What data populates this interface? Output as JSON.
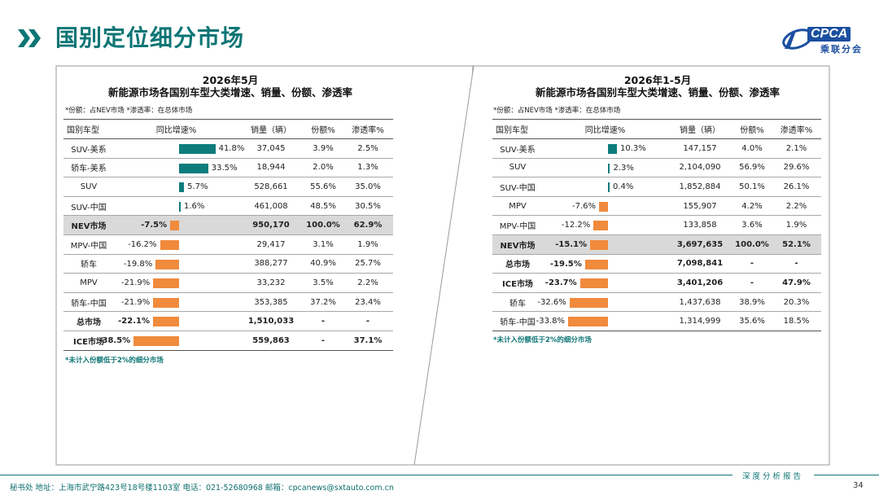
{
  "header": {
    "title": "国别定位细分市场"
  },
  "logo": {
    "brand": "CPCA",
    "subtitle": "乘联分会"
  },
  "left": {
    "title_line1": "2026年5月",
    "title_line2": "新能源市场各国别车型大类增速、销量、份额、渗透率",
    "note": "*份额：占NEV市场   *渗透率：在总体市场",
    "footnote": "*未计入份额低于2%的细分市场",
    "headers": [
      "国别车型",
      "同比增速%",
      "销量（辆）",
      "份额%",
      "渗透率%"
    ]
  },
  "right": {
    "title_line1": "2026年1-5月",
    "title_line2": "新能源市场各国别车型大类增速、销量、份额、渗透率",
    "note": "*份额：占NEV市场   *渗透率：在总体市场",
    "footnote": "*未计入份额低于2%的细分市场",
    "headers": [
      "国别车型",
      "同比增速%",
      "销量（辆）",
      "份额%",
      "渗透率%"
    ]
  },
  "chart_data": [
    {
      "type": "table",
      "title": "2026年5月 新能源市场各国别车型大类增速、销量、份额、渗透率",
      "columns": [
        "国别车型",
        "同比增速%",
        "销量（辆）",
        "份额%",
        "渗透率%"
      ],
      "growth_range": [
        -38.5,
        41.8
      ],
      "rows": [
        {
          "name": "SUV-美系",
          "growth": 41.8,
          "growth_label": "41.8%",
          "sales": "37,045",
          "share": "3.9%",
          "penetration": "2.5%",
          "style": ""
        },
        {
          "name": "轿车-美系",
          "growth": 33.5,
          "growth_label": "33.5%",
          "sales": "18,944",
          "share": "2.0%",
          "penetration": "1.3%",
          "style": ""
        },
        {
          "name": "SUV",
          "growth": 5.7,
          "growth_label": "5.7%",
          "sales": "528,661",
          "share": "55.6%",
          "penetration": "35.0%",
          "style": ""
        },
        {
          "name": "SUV-中国",
          "growth": 1.6,
          "growth_label": "1.6%",
          "sales": "461,008",
          "share": "48.5%",
          "penetration": "30.5%",
          "style": ""
        },
        {
          "name": "NEV市场",
          "growth": -7.5,
          "growth_label": "-7.5%",
          "sales": "950,170",
          "share": "100.0%",
          "penetration": "62.9%",
          "style": "hl"
        },
        {
          "name": "MPV-中国",
          "growth": -16.2,
          "growth_label": "-16.2%",
          "sales": "29,417",
          "share": "3.1%",
          "penetration": "1.9%",
          "style": ""
        },
        {
          "name": "轿车",
          "growth": -19.8,
          "growth_label": "-19.8%",
          "sales": "388,277",
          "share": "40.9%",
          "penetration": "25.7%",
          "style": ""
        },
        {
          "name": "MPV",
          "growth": -21.9,
          "growth_label": "-21.9%",
          "sales": "33,232",
          "share": "3.5%",
          "penetration": "2.2%",
          "style": ""
        },
        {
          "name": "轿车-中国",
          "growth": -21.9,
          "growth_label": "-21.9%",
          "sales": "353,385",
          "share": "37.2%",
          "penetration": "23.4%",
          "style": ""
        },
        {
          "name": "总市场",
          "growth": -22.1,
          "growth_label": "-22.1%",
          "sales": "1,510,033",
          "share": "-",
          "penetration": "-",
          "style": "bold"
        },
        {
          "name": "ICE市场",
          "growth": -38.5,
          "growth_label": "-38.5%",
          "sales": "559,863",
          "share": "-",
          "penetration": "37.1%",
          "style": "bold"
        }
      ]
    },
    {
      "type": "table",
      "title": "2026年1-5月 新能源市场各国别车型大类增速、销量、份额、渗透率",
      "columns": [
        "国别车型",
        "同比增速%",
        "销量（辆）",
        "份额%",
        "渗透率%"
      ],
      "growth_range": [
        -33.8,
        10.3
      ],
      "rows": [
        {
          "name": "SUV-美系",
          "growth": 10.3,
          "growth_label": "10.3%",
          "sales": "147,157",
          "share": "4.0%",
          "penetration": "2.1%",
          "style": ""
        },
        {
          "name": "SUV",
          "growth": 2.3,
          "growth_label": "2.3%",
          "sales": "2,104,090",
          "share": "56.9%",
          "penetration": "29.6%",
          "style": ""
        },
        {
          "name": "SUV-中国",
          "growth": 0.4,
          "growth_label": "0.4%",
          "sales": "1,852,884",
          "share": "50.1%",
          "penetration": "26.1%",
          "style": ""
        },
        {
          "name": "MPV",
          "growth": -7.6,
          "growth_label": "-7.6%",
          "sales": "155,907",
          "share": "4.2%",
          "penetration": "2.2%",
          "style": ""
        },
        {
          "name": "MPV-中国",
          "growth": -12.2,
          "growth_label": "-12.2%",
          "sales": "133,858",
          "share": "3.6%",
          "penetration": "1.9%",
          "style": ""
        },
        {
          "name": "NEV市场",
          "growth": -15.1,
          "growth_label": "-15.1%",
          "sales": "3,697,635",
          "share": "100.0%",
          "penetration": "52.1%",
          "style": "hl"
        },
        {
          "name": "总市场",
          "growth": -19.5,
          "growth_label": "-19.5%",
          "sales": "7,098,841",
          "share": "-",
          "penetration": "-",
          "style": "bold"
        },
        {
          "name": "ICE市场",
          "growth": -23.7,
          "growth_label": "-23.7%",
          "sales": "3,401,206",
          "share": "-",
          "penetration": "47.9%",
          "style": "bold"
        },
        {
          "name": "轿车",
          "growth": -32.6,
          "growth_label": "-32.6%",
          "sales": "1,437,638",
          "share": "38.9%",
          "penetration": "20.3%",
          "style": ""
        },
        {
          "name": "轿车-中国",
          "growth": -33.8,
          "growth_label": "-33.8%",
          "sales": "1,314,999",
          "share": "35.6%",
          "penetration": "18.5%",
          "style": ""
        }
      ]
    }
  ],
  "footer": {
    "contact": "秘书处   地址：上海市武宁路423号18号楼1103室   电话：021-52680968   邮箱：cpcanews@sxtauto.com.cn",
    "report_label": "深度分析报告",
    "page": "34"
  }
}
